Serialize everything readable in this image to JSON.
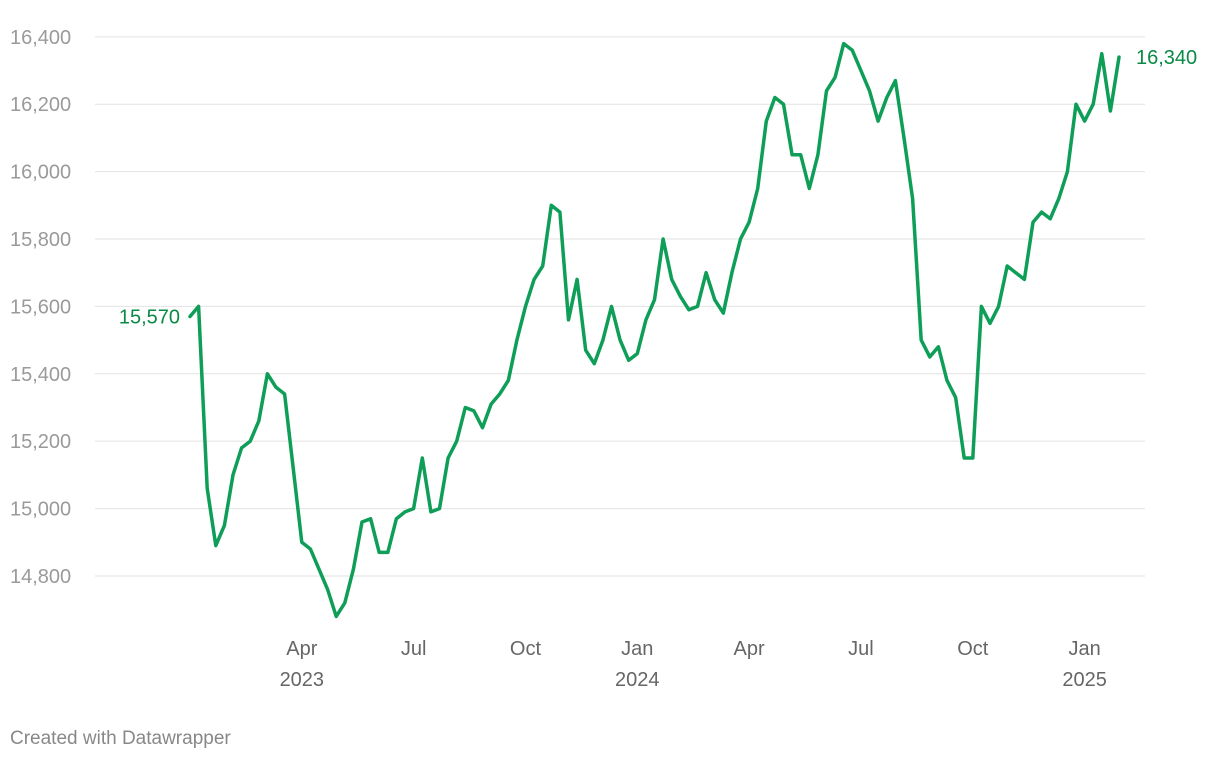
{
  "chart_data": {
    "type": "line",
    "categories": [
      null,
      null,
      null,
      null,
      null,
      null,
      null,
      null,
      null,
      null,
      null,
      null,
      null,
      "Apr 2023",
      null,
      null,
      null,
      null,
      null,
      null,
      null,
      null,
      null,
      null,
      null,
      null,
      "Jul",
      null,
      null,
      null,
      null,
      null,
      null,
      null,
      null,
      null,
      null,
      null,
      null,
      "Oct",
      null,
      null,
      null,
      null,
      null,
      null,
      null,
      null,
      null,
      null,
      null,
      null,
      "Jan 2024",
      null,
      null,
      null,
      null,
      null,
      null,
      null,
      null,
      null,
      null,
      null,
      null,
      "Apr",
      null,
      null,
      null,
      null,
      null,
      null,
      null,
      null,
      null,
      null,
      null,
      null,
      "Jul",
      null,
      null,
      null,
      null,
      null,
      null,
      null,
      null,
      null,
      null,
      null,
      null,
      "Oct",
      null,
      null,
      null,
      null,
      null,
      null,
      null,
      null,
      null,
      null,
      null,
      null,
      "Jan 2025",
      null,
      null,
      null,
      null
    ],
    "series": [
      {
        "color": "#0e9e58",
        "values": [
          15570,
          15600,
          15060,
          14890,
          14950,
          15100,
          15180,
          15200,
          15260,
          15400,
          15360,
          15340,
          15120,
          14900,
          14880,
          14820,
          14760,
          14680,
          14720,
          14820,
          14960,
          14970,
          14870,
          14870,
          14970,
          14990,
          15000,
          15150,
          14990,
          15000,
          15150,
          15200,
          15300,
          15290,
          15240,
          15310,
          15340,
          15380,
          15500,
          15600,
          15680,
          15720,
          15900,
          15880,
          15560,
          15680,
          15470,
          15430,
          15500,
          15600,
          15500,
          15440,
          15460,
          15560,
          15620,
          15800,
          15680,
          15630,
          15590,
          15600,
          15700,
          15620,
          15580,
          15700,
          15800,
          15850,
          15950,
          16150,
          16220,
          16200,
          16050,
          16050,
          15950,
          16050,
          16240,
          16280,
          16380,
          16360,
          16300,
          16240,
          16150,
          16220,
          16270,
          16100,
          15920,
          15500,
          15450,
          15480,
          15380,
          15330,
          15150,
          15150,
          15600,
          15550,
          15600,
          15720,
          15700,
          15680,
          15850,
          15880,
          15860,
          15920,
          16000,
          16200,
          16150,
          16200,
          16350,
          16180,
          16340
        ]
      }
    ],
    "start_label": "15,570",
    "end_label": "16,340",
    "ylim": [
      14650,
      16450
    ],
    "yticks": [
      {
        "value": 14800,
        "label": "14,800"
      },
      {
        "value": 15000,
        "label": "15,000"
      },
      {
        "value": 15200,
        "label": "15,200"
      },
      {
        "value": 15400,
        "label": "15,400"
      },
      {
        "value": 15600,
        "label": "15,600"
      },
      {
        "value": 15800,
        "label": "15,800"
      },
      {
        "value": 16000,
        "label": "16,000"
      },
      {
        "value": 16200,
        "label": "16,200"
      },
      {
        "value": 16400,
        "label": "16,400"
      }
    ],
    "grid": true,
    "credit": "Created with Datawrapper"
  }
}
